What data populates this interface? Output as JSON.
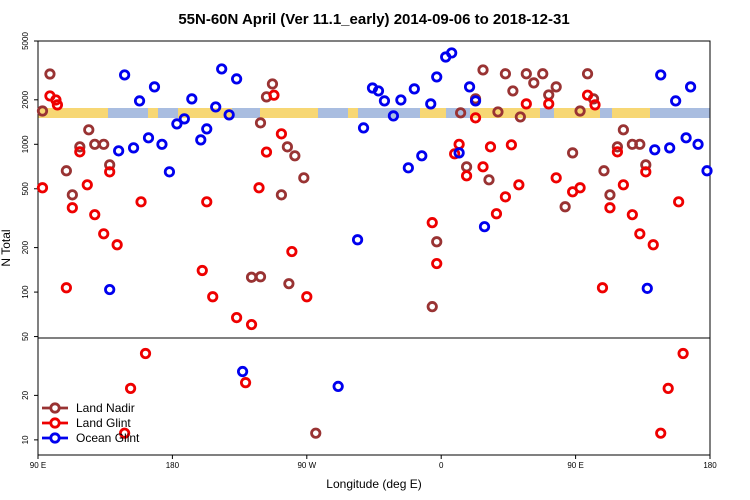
{
  "chart_data": {
    "type": "scatter",
    "title": "55N-60N April (Ver 11.1_early)   2014-09-06 to 2018-12-31",
    "x_label": "Longitude (deg E)",
    "y_label": "N Total",
    "xlim": [
      90,
      540
    ],
    "xticks": [
      {
        "value": 90,
        "label": "90 E"
      },
      180,
      {
        "value": 270,
        "label": "90 W"
      },
      {
        "value": 360,
        "label": "0"
      },
      {
        "value": 450,
        "label": "90 E"
      },
      {
        "value": 540,
        "label": "180"
      }
    ],
    "ylim": [
      7.9,
      5000
    ],
    "log_y": true,
    "yticks": [
      10,
      20,
      50,
      100,
      200,
      500,
      1000,
      2000,
      5000
    ],
    "legend": "bottom-left",
    "series": [
      {
        "name": "Land Nadir",
        "color": "#993333",
        "x": [
          98,
          93,
          109,
          113,
          118,
          124,
          128,
          134,
          138,
          239,
          233,
          239,
          243,
          247,
          253,
          257,
          262,
          268,
          258,
          276,
          354,
          357,
          373,
          377,
          383,
          388,
          392,
          398,
          403,
          408,
          413,
          417,
          422,
          428,
          432,
          437,
          443,
          448,
          453,
          458,
          462,
          469,
          473,
          478,
          482,
          488,
          493,
          497
        ],
        "values": [
          2990,
          1680,
          662,
          455,
          961,
          1253,
          1000,
          1000,
          726,
          127,
          126,
          1396,
          2094,
          2560,
          455,
          961,
          836,
          593,
          114,
          11.1,
          79.7,
          219,
          1633,
          704,
          2029,
          3185,
          575,
          1656,
          3000,
          2297,
          1532,
          3000,
          2603,
          3000,
          2158,
          2446,
          378,
          875,
          1680,
          3000,
          2029,
          662,
          455,
          961,
          1253,
          1000,
          1000,
          726
        ]
      },
      {
        "name": "Land Glint",
        "color": "#ee0000",
        "x": [
          93,
          98,
          102,
          103,
          109,
          113,
          118,
          123,
          128,
          134,
          138,
          143,
          148,
          152,
          159,
          162,
          200,
          203,
          207,
          223,
          229,
          233,
          238,
          243,
          248,
          253,
          260,
          270,
          354,
          357,
          372,
          369,
          377,
          383,
          388,
          393,
          397,
          403,
          407,
          412,
          417,
          432,
          437,
          448,
          453,
          458,
          463,
          468,
          473,
          478,
          482,
          488,
          493,
          497,
          502,
          507,
          512,
          519,
          522
        ],
        "values": [
          508,
          2125,
          1995,
          1848,
          107,
          372,
          889,
          532,
          334,
          248,
          651,
          209,
          11.1,
          22.3,
          408,
          38.4,
          140,
          408,
          93,
          67.2,
          24.4,
          60.3,
          508,
          886,
          2150,
          1177,
          188,
          93,
          295,
          156,
          1000,
          862,
          612,
          1510,
          704,
          961,
          339,
          441,
          992,
          532,
          1877,
          1877,
          593,
          477,
          508,
          2150,
          1848,
          107,
          372,
          889,
          532,
          334,
          248,
          651,
          209,
          11.1,
          22.3,
          408,
          38.4
        ]
      },
      {
        "name": "Ocean Glint",
        "color": "#0000ee",
        "x": [
          138,
          144,
          148,
          154,
          158,
          164,
          168,
          173,
          178,
          183,
          188,
          193,
          199,
          203,
          209,
          213,
          218,
          223,
          227,
          291,
          304,
          308,
          314,
          318,
          322,
          328,
          333,
          338,
          342,
          347,
          353,
          357,
          363,
          367,
          372,
          379,
          383,
          389,
          498,
          503,
          507,
          513,
          517,
          524,
          527,
          532,
          538
        ],
        "values": [
          104,
          903,
          2946,
          946,
          1966,
          1106,
          2446,
          1000,
          651,
          1374,
          1486,
          2029,
          1071,
          1271,
          1790,
          3235,
          1582,
          2770,
          29,
          23,
          226,
          1291,
          2404,
          2297,
          1966,
          1557,
          1995,
          693,
          2371,
          836,
          1877,
          2857,
          3897,
          4150,
          875,
          2446,
          1966,
          277,
          106,
          918,
          2946,
          946,
          1966,
          1106,
          2446,
          1000,
          662
        ]
      }
    ]
  }
}
